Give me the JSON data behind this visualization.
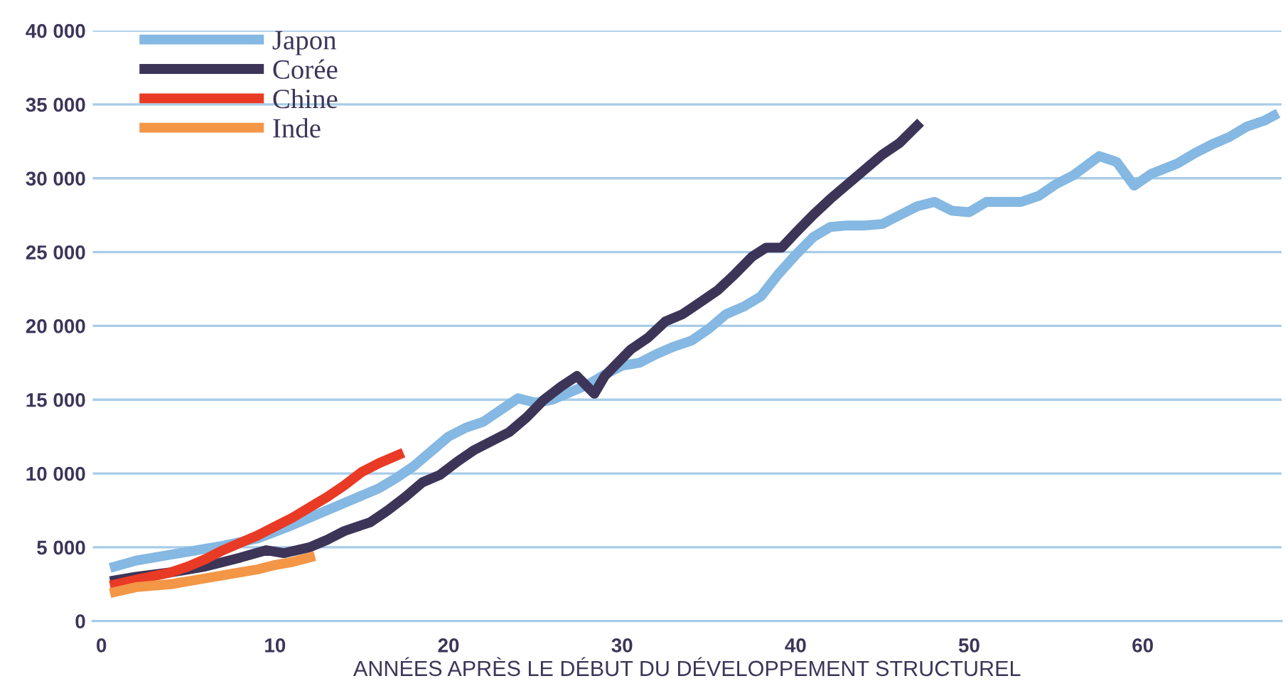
{
  "chart_data": {
    "type": "line",
    "xlabel": "ANNÉES APRÈS LE DÉBUT DU DÉVELOPPEMENT STRUCTUREL",
    "xlim": [
      -0.5,
      68
    ],
    "xticks": [
      0,
      10,
      20,
      30,
      40,
      50,
      60
    ],
    "ylim": [
      0,
      40000
    ],
    "yticks": [
      {
        "value": 0,
        "label": "0"
      },
      {
        "value": 5000,
        "label": "5 000"
      },
      {
        "value": 10000,
        "label": "10 000"
      },
      {
        "value": 15000,
        "label": "15 000"
      },
      {
        "value": 20000,
        "label": "20 000"
      },
      {
        "value": 25000,
        "label": "25 000"
      },
      {
        "value": 30000,
        "label": "30 000"
      },
      {
        "value": 35000,
        "label": "35 000"
      },
      {
        "value": 40000,
        "label": "40 000"
      }
    ],
    "grid": "y",
    "legend": "top left",
    "line_style": "solid",
    "marker": "none",
    "series": [
      {
        "name": "Japon",
        "color": "#85b8e2",
        "x": [
          0.5,
          2,
          4,
          5,
          7,
          9,
          11,
          13,
          15,
          16,
          17,
          18,
          19,
          20,
          21,
          22,
          23,
          24,
          25,
          26,
          27,
          28,
          29,
          30,
          31,
          32,
          33,
          34,
          35,
          36,
          37,
          38,
          39,
          40,
          41,
          42,
          43,
          44,
          45,
          46,
          47,
          48,
          49,
          50,
          51,
          52,
          53,
          54,
          55,
          56,
          57.5,
          58.5,
          59.5,
          60.5,
          62,
          63,
          64,
          65,
          66,
          67,
          67.8
        ],
        "values": [
          3600,
          4100,
          4500,
          4700,
          5100,
          5600,
          6500,
          7500,
          8500,
          9000,
          9700,
          10500,
          11500,
          12500,
          13100,
          13500,
          14300,
          15100,
          14800,
          15000,
          15500,
          16000,
          16700,
          17300,
          17500,
          18100,
          18600,
          19000,
          19800,
          20800,
          21300,
          22000,
          23500,
          24800,
          26000,
          26700,
          26800,
          26800,
          26900,
          27500,
          28100,
          28400,
          27800,
          27700,
          28400,
          28400,
          28400,
          28800,
          29600,
          30200,
          31500,
          31100,
          29500,
          30300,
          31000,
          31700,
          32300,
          32800,
          33500,
          33900,
          34400
        ]
      },
      {
        "name": "Corée",
        "color": "#3d3558",
        "x": [
          0.5,
          2,
          4,
          6,
          8,
          9.5,
          10.5,
          12,
          13,
          14,
          15.5,
          16.5,
          17.5,
          18.5,
          19.5,
          20.5,
          21.5,
          22.5,
          23.5,
          24.5,
          25.5,
          26.5,
          27.4,
          28.4,
          29,
          30,
          30.5,
          31.5,
          32.5,
          33.5,
          34.5,
          35.5,
          36.5,
          37.5,
          38.3,
          39.2,
          40,
          41,
          42,
          43,
          44,
          45,
          46,
          47.2
        ],
        "values": [
          2700,
          3000,
          3300,
          3700,
          4300,
          4800,
          4600,
          5000,
          5500,
          6100,
          6700,
          7500,
          8400,
          9400,
          9900,
          10800,
          11600,
          12200,
          12800,
          13800,
          15000,
          15900,
          16600,
          15400,
          16600,
          17800,
          18400,
          19200,
          20300,
          20800,
          21600,
          22400,
          23500,
          24700,
          25300,
          25300,
          26300,
          27500,
          28600,
          29600,
          30600,
          31600,
          32400,
          33800
        ]
      },
      {
        "name": "Chine",
        "color": "#e93a26",
        "x": [
          0.5,
          2,
          4,
          5,
          6,
          7,
          8,
          9,
          10,
          11,
          12,
          13,
          14,
          15,
          16,
          17.4
        ],
        "values": [
          2400,
          2800,
          3300,
          3700,
          4200,
          4800,
          5300,
          5800,
          6400,
          7000,
          7700,
          8400,
          9200,
          10100,
          10700,
          11400
        ]
      },
      {
        "name": "Inde",
        "color": "#f39646",
        "x": [
          0.5,
          2,
          4,
          6,
          8,
          9,
          10,
          11,
          12.3
        ],
        "values": [
          1900,
          2300,
          2500,
          2900,
          3300,
          3500,
          3800,
          4000,
          4400
        ]
      }
    ]
  }
}
